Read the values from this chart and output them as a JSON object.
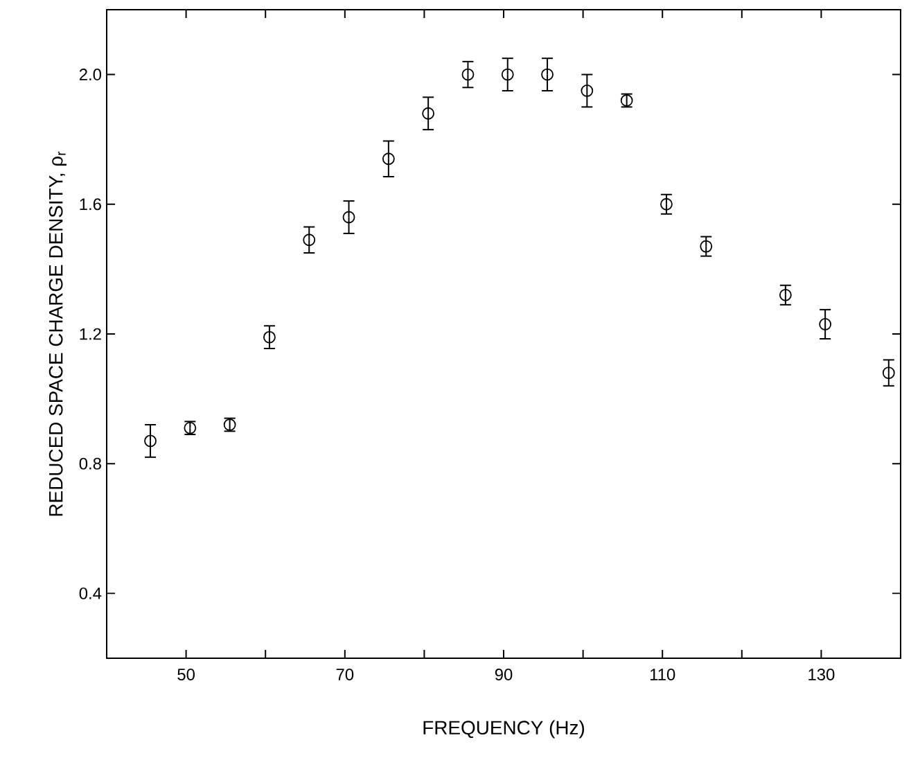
{
  "chart_data": {
    "type": "scatter",
    "xlabel": "FREQUENCY (Hz)",
    "ylabel": "REDUCED SPACE CHARGE DENSITY, ρ$_{r}$",
    "x": [
      45.5,
      50.5,
      55.5,
      60.5,
      65.5,
      70.5,
      75.5,
      80.5,
      85.5,
      90.5,
      95.5,
      100.5,
      105.5,
      110.5,
      115.5,
      125.5,
      130.5,
      138.5
    ],
    "values": [
      0.87,
      0.91,
      0.92,
      1.19,
      1.49,
      1.56,
      1.74,
      1.88,
      2.0,
      2.0,
      2.0,
      1.95,
      1.92,
      1.6,
      1.47,
      1.32,
      1.23,
      1.08
    ],
    "errors": [
      0.05,
      0.02,
      0.02,
      0.035,
      0.04,
      0.05,
      0.055,
      0.05,
      0.04,
      0.05,
      0.05,
      0.05,
      0.02,
      0.03,
      0.03,
      0.03,
      0.045,
      0.04
    ],
    "color": "#000000",
    "marker": "circle",
    "xlim": [
      40,
      140
    ],
    "ylim": [
      0.2,
      2.2
    ],
    "xticks": [
      {
        "value": 40,
        "label": null
      },
      50,
      {
        "value": 60,
        "label": null
      },
      70,
      {
        "value": 80,
        "label": null
      },
      90,
      {
        "value": 100,
        "label": null
      },
      110,
      {
        "value": 120,
        "label": null
      },
      130,
      {
        "value": 140,
        "label": null
      }
    ],
    "yticks": [
      0.4,
      0.8,
      1.2,
      1.6,
      {
        "value": 2,
        "label": "2.0"
      }
    ]
  }
}
